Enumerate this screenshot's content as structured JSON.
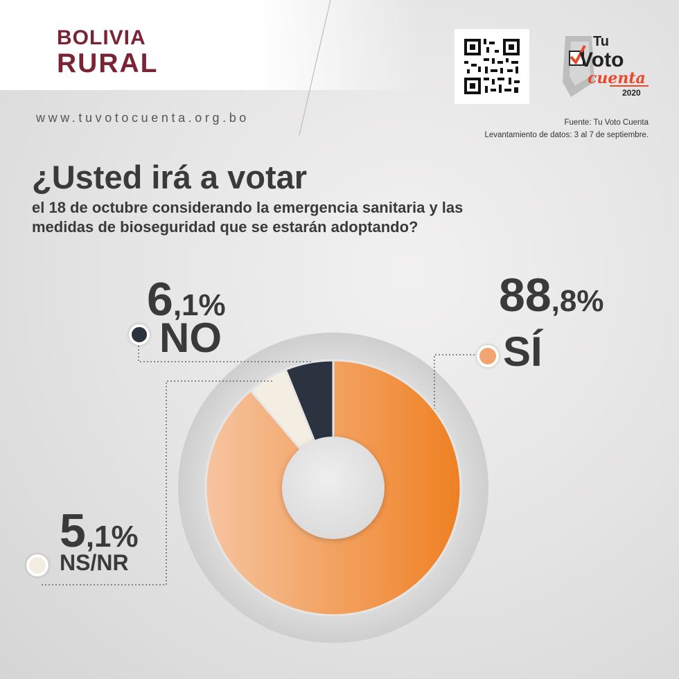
{
  "brand": {
    "line1": "BOLIVIA",
    "line2": "RURAL"
  },
  "website": "www.tuvotocuenta.org.bo",
  "logo": {
    "line1": "Tu",
    "line2": "Voto",
    "line3": "cuenta",
    "year": "2020"
  },
  "source": {
    "line1": "Fuente: Tu Voto Cuenta",
    "line2": "Levantamiento de datos: 3 al 7 de septiembre."
  },
  "question": {
    "headline": "¿Usted irá a votar",
    "rest": "el 18 de octubre considerando la emergencia sanitaria y las medidas de bioseguridad que se estarán adoptando?"
  },
  "colors": {
    "si": "#f08a34",
    "ns_nr": "#f3ede2",
    "no": "#2c3340",
    "brand": "#7a2334",
    "text": "#3a3a3a"
  },
  "chart_data": {
    "type": "pie",
    "title": "¿Usted irá a votar el 18 de octubre considerando la emergencia sanitaria y las medidas de bioseguridad que se estarán adoptando?",
    "legend_placement": "around",
    "slices": [
      {
        "label": "SÍ",
        "value": 88.8,
        "int": "88",
        "dec": ",8%",
        "color": "#f08a34"
      },
      {
        "label": "NS/NR",
        "value": 5.1,
        "int": "5",
        "dec": ",1%",
        "color": "#f3ede2"
      },
      {
        "label": "NO",
        "value": 6.1,
        "int": "6",
        "dec": ",1%",
        "color": "#2c3340"
      }
    ]
  }
}
